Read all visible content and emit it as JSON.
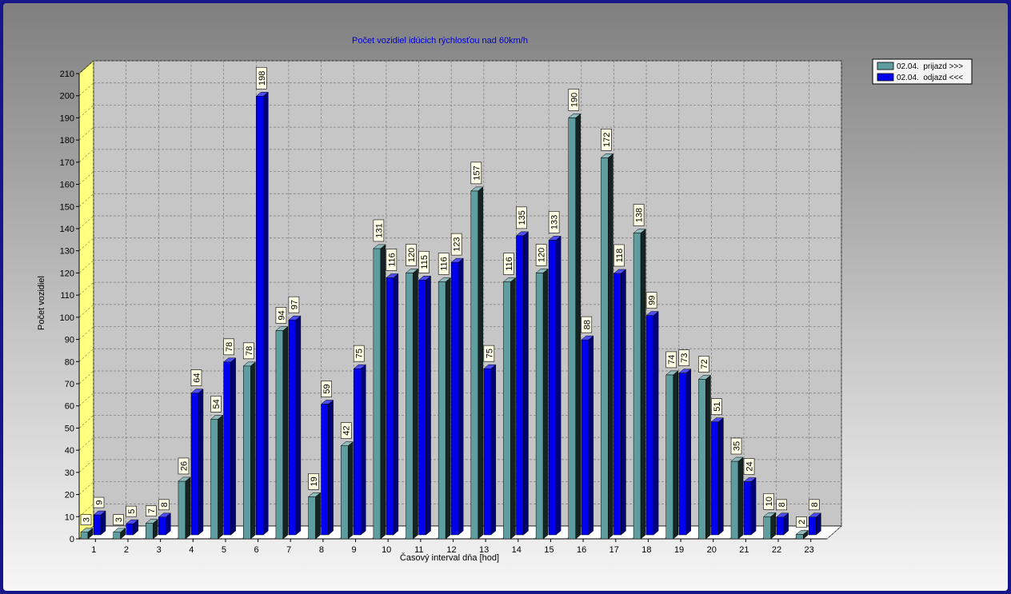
{
  "chart_data": {
    "type": "bar",
    "title": "Počet vozidiel idúcich rýchlosťou nad 60km/h",
    "xlabel": "Časový interval dňa [hod]",
    "ylabel": "Počet vozidiel",
    "ylim": [
      0,
      210
    ],
    "yticks": [
      0,
      10,
      20,
      30,
      40,
      50,
      60,
      70,
      80,
      90,
      100,
      110,
      120,
      130,
      140,
      150,
      160,
      170,
      180,
      190,
      200,
      210
    ],
    "categories": [
      "1",
      "2",
      "3",
      "4",
      "5",
      "6",
      "7",
      "8",
      "9",
      "10",
      "11",
      "12",
      "13",
      "14",
      "15",
      "16",
      "17",
      "18",
      "19",
      "20",
      "21",
      "22",
      "23"
    ],
    "series": [
      {
        "name": "02.04.  prijazd >>>",
        "color": "#5f9ea0",
        "values": [
          3,
          3,
          7,
          26,
          54,
          78,
          94,
          19,
          42,
          131,
          120,
          116,
          157,
          116,
          120,
          190,
          172,
          138,
          74,
          72,
          35,
          10,
          2
        ]
      },
      {
        "name": "02.04.  odjazd <<<",
        "color": "#0000ee",
        "values": [
          9,
          5,
          8,
          64,
          78,
          198,
          97,
          59,
          75,
          116,
          115,
          123,
          75,
          135,
          133,
          88,
          118,
          99,
          73,
          51,
          24,
          8,
          8
        ]
      }
    ],
    "legend": "top-right",
    "grid": true,
    "data_labels": true
  }
}
